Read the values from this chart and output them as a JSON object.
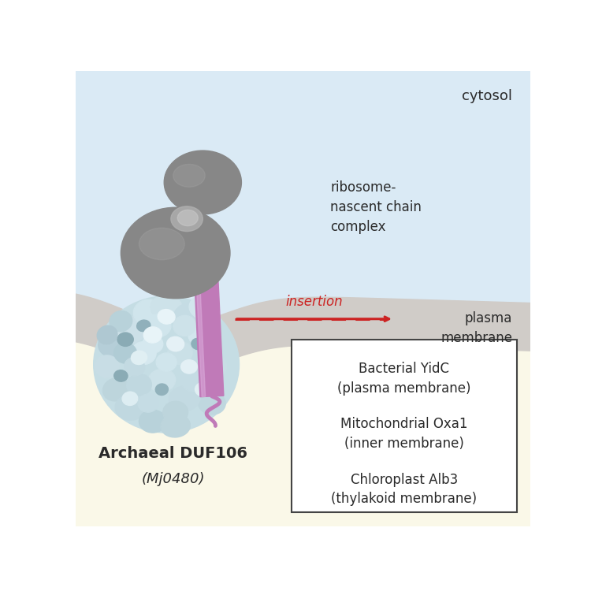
{
  "bg_top_color": "#daeaf5",
  "bg_bottom_color": "#faf8e8",
  "membrane_color": "#d0ccc8",
  "cytosol_label": "cytosol",
  "ribosome_label": "ribosome-\nnascent chain\ncomplex",
  "insertion_label": "insertion",
  "plasma_membrane_label": "plasma\nmembrane",
  "archaeal_label_line1": "Archaeal DUF106",
  "archaeal_label_line2": "(Mj0480)",
  "box_line1": "Bacterial YidC",
  "box_line2": "(plasma membrane)",
  "box_line3": "Mitochondrial Oxa1",
  "box_line4": "(inner membrane)",
  "box_line5": "Chloroplast Alb3",
  "box_line6": "(thylakoid membrane)",
  "ribosome_color": "#878787",
  "ribosome_highlight": "#a0a0a0",
  "protein_color_main": "#c5dde4",
  "protein_color_dark": "#8aabb5",
  "protein_color_light": "#e0eff3",
  "helix_color": "#c07ab8",
  "helix_light": "#d9a8d8",
  "helix_dark": "#9a5a98",
  "arrow_color": "#cc2222",
  "text_color": "#2a2a2a",
  "box_bg": "#ffffff",
  "box_edge": "#444444"
}
